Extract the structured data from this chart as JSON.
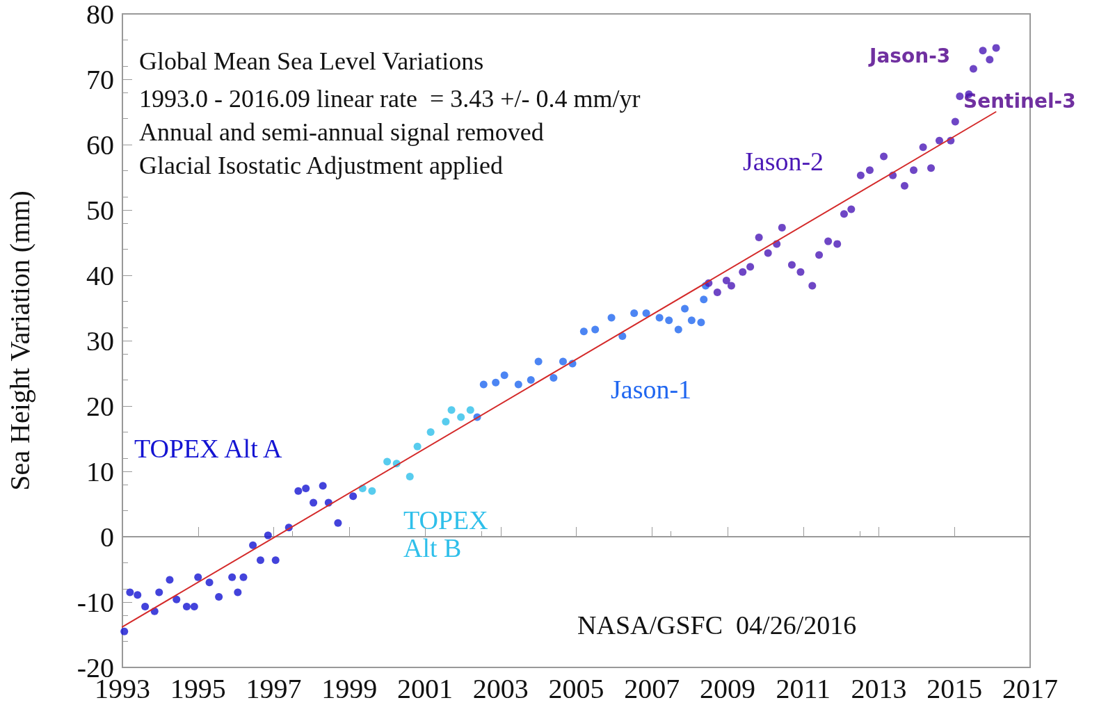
{
  "chart_data": {
    "type": "scatter",
    "title": "Global Mean Sea Level Variations",
    "subtitle": "1993.0 - 2016.09 linear rate  = 3.43 +/- 0.4 mm/yr\nAnnual and semi-annual signal removed\nGlacial Isostatic Adjustment applied",
    "ylabel": "Sea Height Variation (mm)",
    "xlim": [
      1993,
      2017
    ],
    "xticks": [
      1993,
      1995,
      1997,
      1999,
      2001,
      2003,
      2005,
      2007,
      2009,
      2011,
      2013,
      2015,
      2017
    ],
    "ylim": [
      -20,
      80
    ],
    "yticks": [
      -20,
      -10,
      0,
      10,
      20,
      30,
      40,
      50,
      60,
      70,
      80
    ],
    "marker": "circle",
    "annotations": [
      "Jason-3",
      "Sentinel-3",
      "NASA/GSFC  04/26/2016"
    ],
    "series": [
      {
        "name": "TOPEX Alt A",
        "color": "#1414d2",
        "x": [
          1993.05,
          1993.2,
          1993.4,
          1993.6,
          1993.85,
          1993.97,
          1994.25,
          1994.43,
          1994.7,
          1994.9,
          1995.0,
          1995.3,
          1995.55,
          1995.9,
          1996.05,
          1996.2,
          1996.45,
          1996.65,
          1996.85,
          1997.05,
          1997.4,
          1997.65,
          1997.85,
          1998.05,
          1998.3,
          1998.45,
          1998.7,
          1999.1
        ],
        "values": [
          -14.5,
          -8.5,
          -8.9,
          -10.7,
          -11.4,
          -8.5,
          -6.6,
          -9.6,
          -10.7,
          -10.7,
          -6.2,
          -7.0,
          -9.2,
          -6.2,
          -8.5,
          -6.2,
          -1.3,
          -3.6,
          0.2,
          -3.6,
          1.4,
          7.0,
          7.4,
          5.2,
          7.8,
          5.2,
          2.1,
          6.2
        ]
      },
      {
        "name": "TOPEX Alt B",
        "color": "#2ebfea",
        "x": [
          1999.35,
          1999.6,
          2000.0,
          2000.25,
          2000.6,
          2000.8,
          2001.15,
          2001.55,
          2001.7,
          2001.95,
          2002.2
        ],
        "values": [
          7.4,
          7.0,
          11.5,
          11.2,
          9.2,
          13.8,
          16.0,
          17.6,
          19.4,
          18.3,
          19.4
        ]
      },
      {
        "name": "Jason-1",
        "color": "#1f66f0",
        "x": [
          2002.38,
          2002.55,
          2002.87,
          2003.1,
          2003.47,
          2003.8,
          2004.0,
          2004.4,
          2004.65,
          2004.9,
          2005.2,
          2005.5,
          2005.93,
          2006.22,
          2006.53,
          2006.85,
          2007.2,
          2007.45,
          2007.7,
          2007.87,
          2008.05,
          2008.3,
          2008.37,
          2008.42
        ],
        "values": [
          18.3,
          23.3,
          23.6,
          24.7,
          23.3,
          24.0,
          26.8,
          24.3,
          26.8,
          26.5,
          31.4,
          31.7,
          33.5,
          30.7,
          34.2,
          34.2,
          33.5,
          33.1,
          31.7,
          34.9,
          33.1,
          32.8,
          36.3,
          38.4
        ]
      },
      {
        "name": "Jason-2",
        "color": "#4a18b6",
        "x": [
          2008.5,
          2008.73,
          2008.97,
          2009.1,
          2009.4,
          2009.6,
          2009.83,
          2010.07,
          2010.3,
          2010.44,
          2010.7,
          2010.93,
          2011.24,
          2011.42,
          2011.66,
          2011.9,
          2012.08,
          2012.27,
          2012.52,
          2012.76,
          2013.13,
          2013.37,
          2013.68,
          2013.92,
          2014.17,
          2014.38,
          2014.6,
          2014.9,
          2015.02,
          2015.14,
          2015.38,
          2015.5,
          2015.75,
          2015.93,
          2016.1
        ],
        "values": [
          38.8,
          37.4,
          39.2,
          38.4,
          40.5,
          41.3,
          45.8,
          43.4,
          44.8,
          47.3,
          41.6,
          40.5,
          38.4,
          43.1,
          45.2,
          44.8,
          49.4,
          50.1,
          55.3,
          56.1,
          58.2,
          55.3,
          53.7,
          56.1,
          59.6,
          56.4,
          60.6,
          60.6,
          63.5,
          67.4,
          67.7,
          71.6,
          74.4,
          73.0,
          74.8
        ]
      },
      {
        "type": "line",
        "marker": "none",
        "color": "#d42a2a",
        "x": [
          1993.0,
          2016.09
        ],
        "values": [
          -13.8,
          65.0
        ]
      }
    ]
  }
}
